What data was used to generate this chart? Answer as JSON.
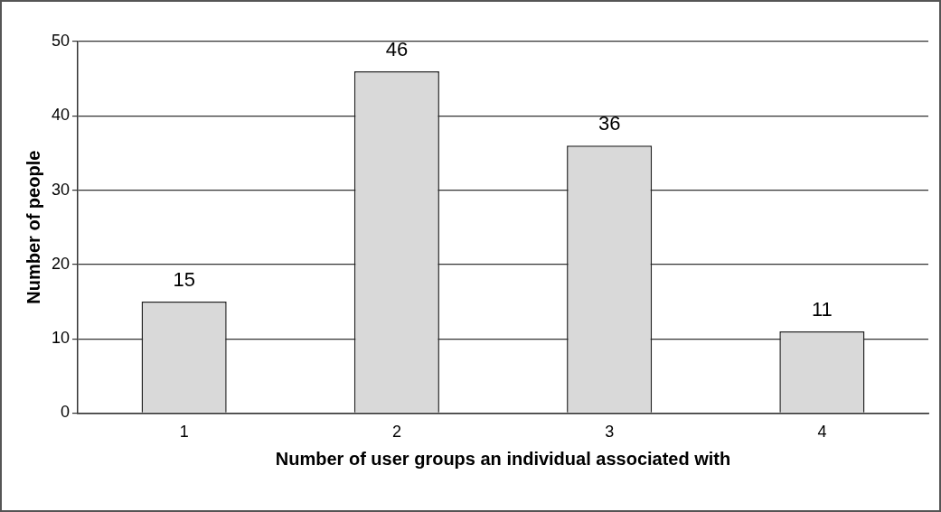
{
  "chart_data": {
    "type": "bar",
    "xlabel": "Number of user groups an individual associated with",
    "ylabel": "Number of people",
    "categories": [
      "1",
      "2",
      "3",
      "4"
    ],
    "values": [
      15,
      46,
      36,
      11
    ],
    "color": "#d9d9d9",
    "ylim": [
      0,
      50
    ],
    "yticks": [
      0,
      10,
      20,
      30,
      40,
      50
    ],
    "grid": "y",
    "data_labels": true,
    "legend": false
  }
}
